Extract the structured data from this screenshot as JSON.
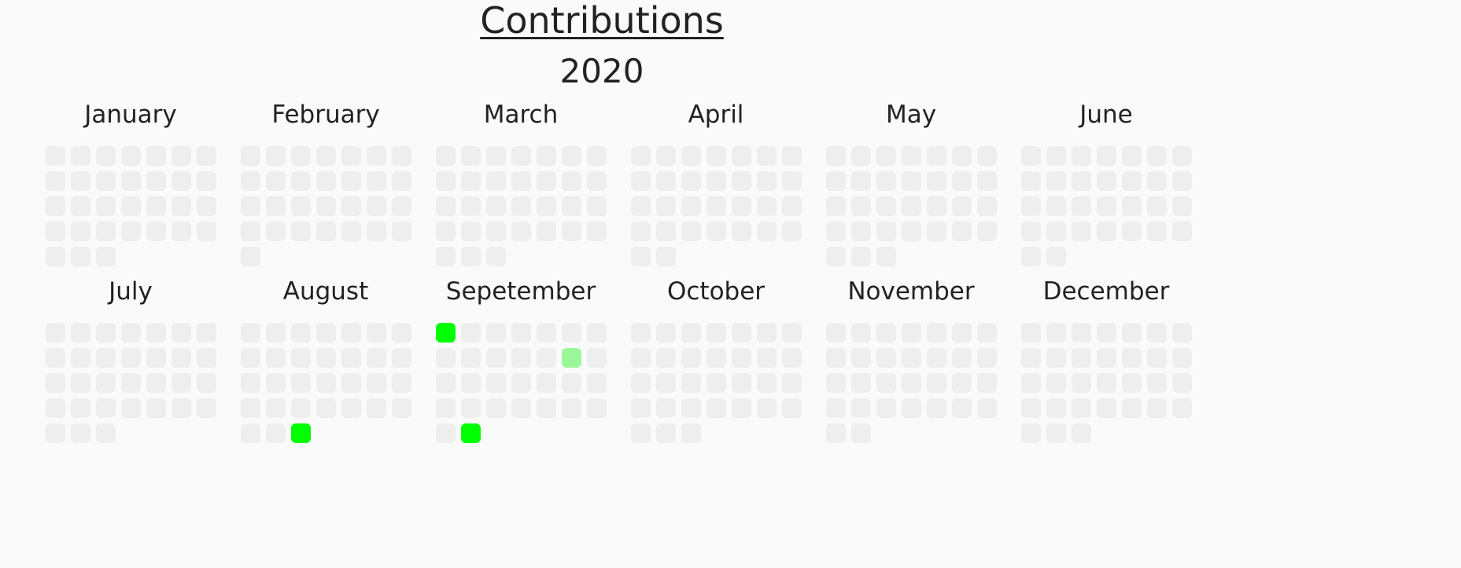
{
  "header": {
    "title": "Contributions",
    "year": "2020"
  },
  "colors": {
    "empty": "#eeeeee",
    "level_1": "#99f799",
    "level_2": "#00ff00"
  },
  "months": [
    {
      "name": "January",
      "days": 31,
      "contributions": {}
    },
    {
      "name": "February",
      "days": 29,
      "contributions": {}
    },
    {
      "name": "March",
      "days": 31,
      "contributions": {}
    },
    {
      "name": "April",
      "days": 30,
      "contributions": {}
    },
    {
      "name": "May",
      "days": 31,
      "contributions": {}
    },
    {
      "name": "June",
      "days": 30,
      "contributions": {}
    },
    {
      "name": "July",
      "days": 31,
      "contributions": {}
    },
    {
      "name": "August",
      "days": 31,
      "contributions": {
        "31": 2
      }
    },
    {
      "name": "Sepetember",
      "days": 30,
      "contributions": {
        "1": 2,
        "13": 1,
        "30": 2
      }
    },
    {
      "name": "October",
      "days": 31,
      "contributions": {}
    },
    {
      "name": "November",
      "days": 30,
      "contributions": {}
    },
    {
      "name": "December",
      "days": 31,
      "contributions": {}
    }
  ]
}
